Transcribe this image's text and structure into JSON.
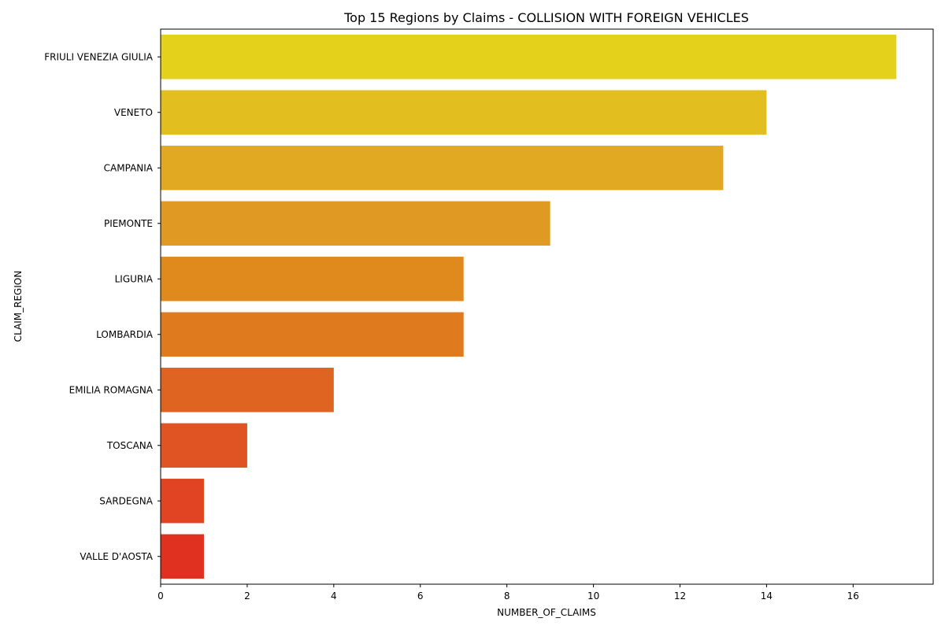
{
  "chart_data": {
    "type": "bar",
    "orientation": "horizontal",
    "title": "Top 15 Regions by Claims - COLLISION WITH FOREIGN VEHICLES",
    "xlabel": "NUMBER_OF_CLAIMS",
    "ylabel": "CLAIM_REGION",
    "categories": [
      "FRIULI VENEZIA GIULIA",
      "VENETO",
      "CAMPANIA",
      "PIEMONTE",
      "LIGURIA",
      "LOMBARDIA",
      "EMILIA ROMAGNA",
      "TOSCANA",
      "SARDEGNA",
      "VALLE D'AOSTA"
    ],
    "values": [
      17,
      14,
      13,
      9,
      7,
      7,
      4,
      2,
      1,
      1
    ],
    "colors": [
      "#E3D11C",
      "#E2BE1F",
      "#E1A921",
      "#E09922",
      "#E08A1E",
      "#E07A1F",
      "#DF6321",
      "#E05322",
      "#E04423",
      "#DF3020"
    ],
    "xlim": [
      0,
      17.85
    ],
    "xticks": [
      0,
      2,
      4,
      6,
      8,
      10,
      12,
      14,
      16
    ],
    "grid": false,
    "legend": "none"
  }
}
